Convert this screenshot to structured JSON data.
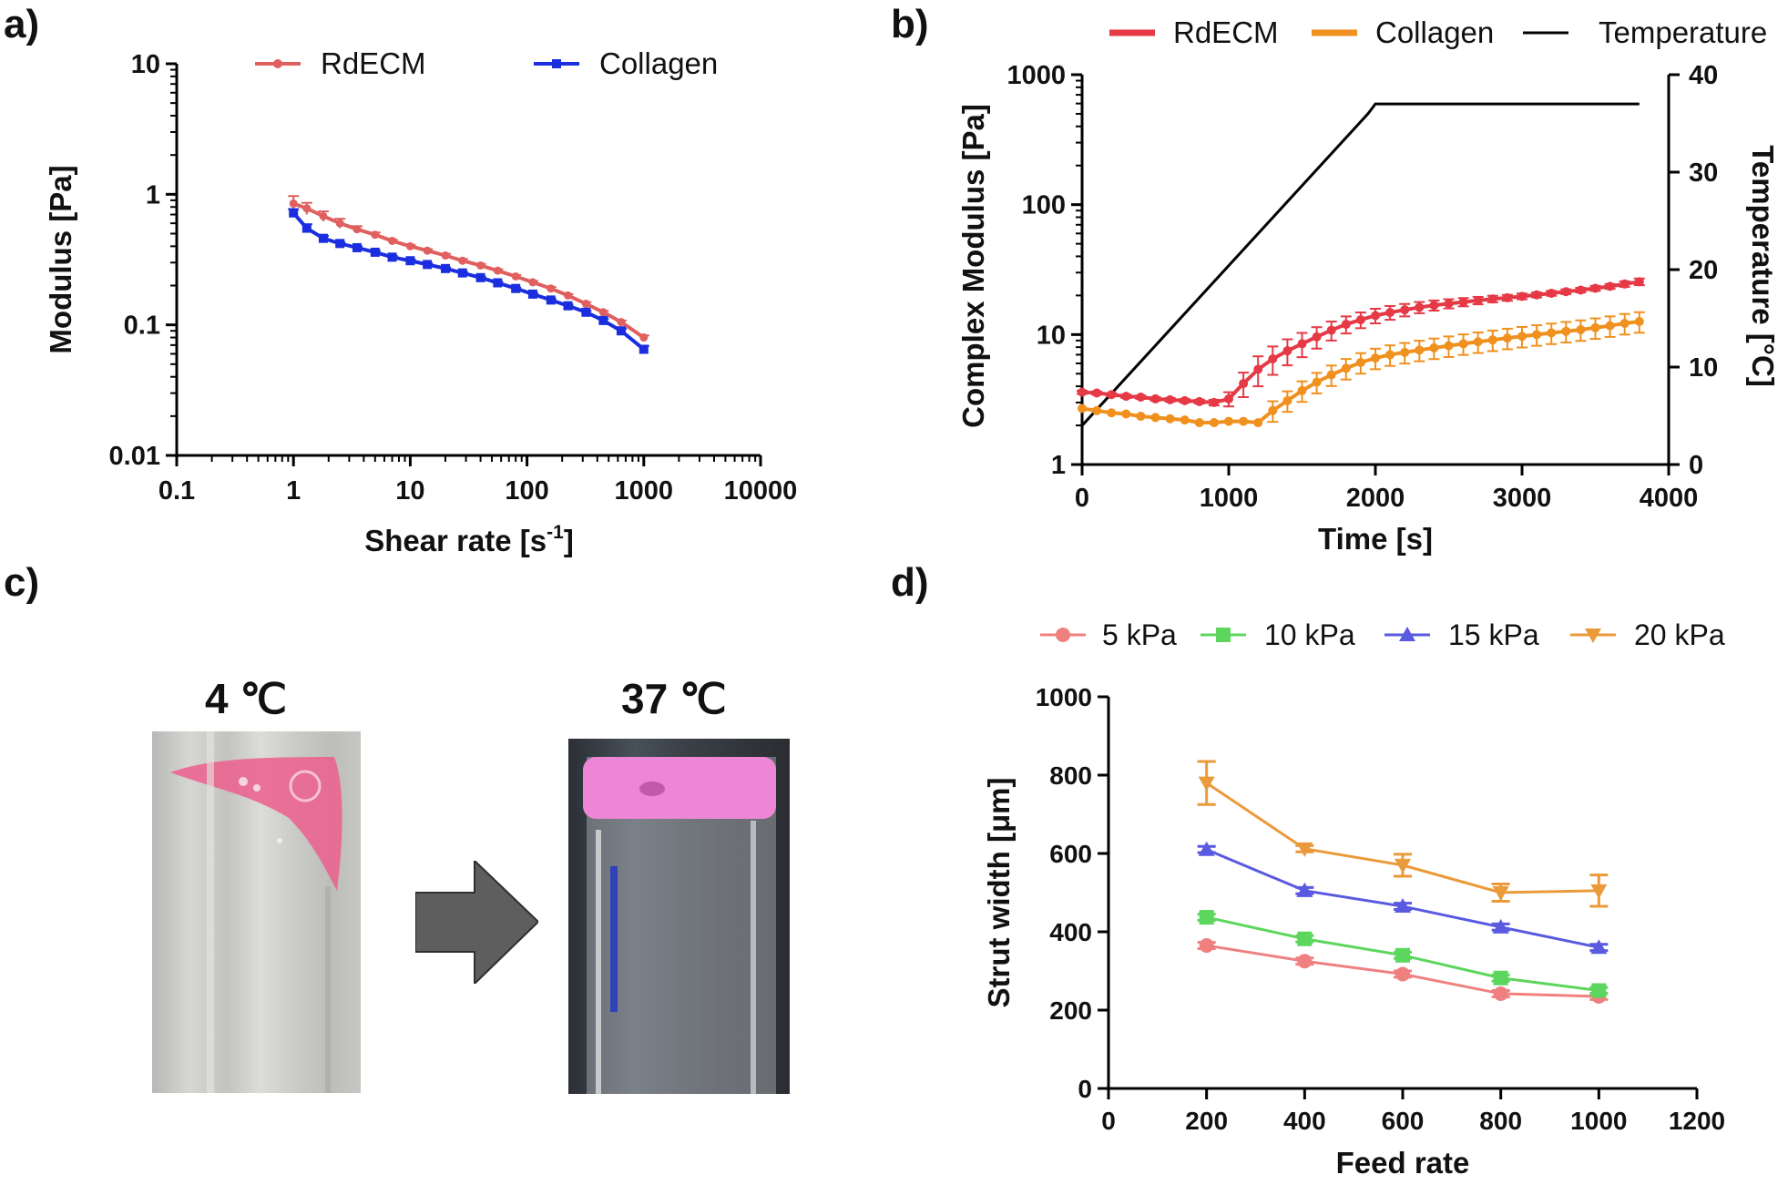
{
  "panel_labels": [
    "a)",
    "b)",
    "c)",
    "d)"
  ],
  "colors": {
    "rdecm_a": "#e06060",
    "collagen_a": "#1a2ee0",
    "rdecm_b": "#e53945",
    "collagen_b": "#f0901e",
    "temperature": "#000000",
    "d_5": "#f08080",
    "d_10": "#5cd65c",
    "d_15": "#5a5ae0",
    "d_20": "#eb9a3a",
    "tube_pink": "#f06aa5",
    "arrow": "#5e5e5e"
  },
  "chart_data": [
    {
      "id": "a",
      "type": "line",
      "xscale": "log",
      "yscale": "log",
      "xlabel": "Shear rate [s",
      "xlabel_sup": "-1",
      "xlabel_end": "]",
      "ylabel": "Modulus [Pa]",
      "xlim": [
        0.1,
        10000
      ],
      "ylim": [
        0.01,
        10
      ],
      "xticks": [
        "0.1",
        "1",
        "10",
        "100",
        "1000",
        "10000"
      ],
      "yticks": [
        "0.01",
        "0.1",
        "1",
        "10"
      ],
      "legend": [
        "RdECM",
        "Collagen"
      ],
      "series": [
        {
          "name": "RdECM",
          "x": [
            1,
            1.3,
            1.8,
            2.5,
            3.5,
            5,
            7,
            10,
            14,
            20,
            28,
            40,
            56,
            80,
            112,
            160,
            224,
            320,
            450,
            640,
            1000
          ],
          "y": [
            0.85,
            0.78,
            0.68,
            0.6,
            0.54,
            0.49,
            0.44,
            0.4,
            0.37,
            0.34,
            0.31,
            0.285,
            0.26,
            0.235,
            0.212,
            0.19,
            0.168,
            0.145,
            0.125,
            0.105,
            0.08
          ],
          "err": [
            0.12,
            0.08,
            0.06,
            0.05,
            0.03,
            0.02,
            0.01,
            0.01,
            0.01,
            0.01,
            0.01,
            0.008,
            0.007,
            0.006,
            0.005,
            0.005,
            0.004,
            0.004,
            0.003,
            0.003,
            0.003
          ]
        },
        {
          "name": "Collagen",
          "x": [
            1,
            1.3,
            1.8,
            2.5,
            3.5,
            5,
            7,
            10,
            14,
            20,
            28,
            40,
            56,
            80,
            112,
            160,
            224,
            320,
            450,
            640,
            1000
          ],
          "y": [
            0.72,
            0.55,
            0.46,
            0.42,
            0.39,
            0.36,
            0.33,
            0.31,
            0.29,
            0.27,
            0.25,
            0.23,
            0.21,
            0.19,
            0.172,
            0.155,
            0.14,
            0.125,
            0.108,
            0.09,
            0.065
          ],
          "err": [
            0.05,
            0.04,
            0.02,
            0.01,
            0.01,
            0.01,
            0.008,
            0.007,
            0.006,
            0.005,
            0.005,
            0.004,
            0.004,
            0.003,
            0.003,
            0.003,
            0.003,
            0.003,
            0.003,
            0.003,
            0.004
          ]
        }
      ]
    },
    {
      "id": "b",
      "type": "line",
      "xscale": "linear",
      "yscale": "log",
      "xlabel": "Time [s]",
      "ylabel": "Complex Modulus [Pa]",
      "y2label": "Temperature [°C]",
      "xlim": [
        0,
        4000
      ],
      "ylim": [
        1,
        1000
      ],
      "y2lim": [
        0,
        40
      ],
      "xticks": [
        "0",
        "1000",
        "2000",
        "3000",
        "4000"
      ],
      "yticks": [
        "1",
        "10",
        "100",
        "1000"
      ],
      "y2ticks": [
        "0",
        "10",
        "20",
        "30",
        "40"
      ],
      "legend": [
        "RdECM",
        "Collagen",
        "Temperature"
      ],
      "series": [
        {
          "name": "RdECM",
          "x": [
            0,
            100,
            200,
            300,
            400,
            500,
            600,
            700,
            800,
            900,
            1000,
            1100,
            1200,
            1300,
            1400,
            1500,
            1600,
            1700,
            1800,
            1900,
            2000,
            2100,
            2200,
            2300,
            2400,
            2500,
            2600,
            2700,
            2800,
            2900,
            3000,
            3100,
            3200,
            3300,
            3400,
            3500,
            3600,
            3700,
            3800
          ],
          "y": [
            3.6,
            3.55,
            3.45,
            3.35,
            3.3,
            3.2,
            3.15,
            3.1,
            3.05,
            3.0,
            3.2,
            4.2,
            5.4,
            6.5,
            7.5,
            8.5,
            9.6,
            10.8,
            12.0,
            13.0,
            14.0,
            14.8,
            15.5,
            16.2,
            16.8,
            17.3,
            17.8,
            18.3,
            18.8,
            19.2,
            19.7,
            20.2,
            20.8,
            21.4,
            22.0,
            22.7,
            23.5,
            24.5,
            25.5
          ],
          "err": [
            0.1,
            0.1,
            0.1,
            0.1,
            0.1,
            0.1,
            0.1,
            0.1,
            0.1,
            0.15,
            0.4,
            0.9,
            1.4,
            1.6,
            1.7,
            1.8,
            1.8,
            1.8,
            1.8,
            1.8,
            1.8,
            1.8,
            1.7,
            1.6,
            1.5,
            1.4,
            1.3,
            1.2,
            1.1,
            1.0,
            1.0,
            0.9,
            0.9,
            0.9,
            0.9,
            1.0,
            1.0,
            1.2,
            1.5
          ]
        },
        {
          "name": "Collagen",
          "x": [
            0,
            100,
            200,
            300,
            400,
            500,
            600,
            700,
            800,
            900,
            1000,
            1100,
            1200,
            1300,
            1400,
            1500,
            1600,
            1700,
            1800,
            1900,
            2000,
            2100,
            2200,
            2300,
            2400,
            2500,
            2600,
            2700,
            2800,
            2900,
            3000,
            3100,
            3200,
            3300,
            3400,
            3500,
            3600,
            3700,
            3800
          ],
          "y": [
            2.7,
            2.6,
            2.5,
            2.45,
            2.35,
            2.3,
            2.25,
            2.2,
            2.1,
            2.1,
            2.15,
            2.15,
            2.1,
            2.6,
            3.1,
            3.7,
            4.3,
            4.9,
            5.5,
            6.1,
            6.6,
            7.0,
            7.3,
            7.6,
            7.9,
            8.2,
            8.5,
            8.8,
            9.1,
            9.4,
            9.7,
            10.0,
            10.3,
            10.6,
            10.9,
            11.3,
            11.7,
            12.2,
            12.6
          ]
        },
        {
          "name": "Temperature",
          "x": [
            0,
            1950,
            2000,
            3800
          ],
          "y2": [
            4,
            36,
            37,
            37
          ]
        }
      ]
    },
    {
      "id": "d",
      "type": "line",
      "xscale": "linear",
      "yscale": "linear",
      "xlabel": "Feed rate",
      "ylabel": "Strut width [μm]",
      "xlim": [
        0,
        1200
      ],
      "ylim": [
        0,
        1000
      ],
      "xticks": [
        "0",
        "200",
        "400",
        "600",
        "800",
        "1000",
        "1200"
      ],
      "yticks": [
        "0",
        "200",
        "400",
        "600",
        "800",
        "1000"
      ],
      "legend": [
        "5 kPa",
        "10 kPa",
        "15 kPa",
        "20 kPa"
      ],
      "x": [
        200,
        400,
        600,
        800,
        1000
      ],
      "series": [
        {
          "name": "5 kPa",
          "marker": "circle",
          "y": [
            365,
            325,
            292,
            242,
            235
          ],
          "err": [
            8,
            8,
            8,
            8,
            8
          ]
        },
        {
          "name": "10 kPa",
          "marker": "square",
          "y": [
            437,
            382,
            340,
            282,
            250
          ],
          "err": [
            8,
            8,
            8,
            8,
            8
          ]
        },
        {
          "name": "15 kPa",
          "marker": "triangle",
          "y": [
            610,
            505,
            465,
            412,
            360
          ],
          "err": [
            8,
            8,
            8,
            8,
            8
          ]
        },
        {
          "name": "20 kPa",
          "marker": "triangle-down",
          "y": [
            780,
            612,
            570,
            500,
            505
          ],
          "err": [
            55,
            8,
            28,
            22,
            40
          ]
        }
      ]
    }
  ],
  "panel_c": {
    "left_temp": "4 ℃",
    "right_temp": "37 ℃"
  }
}
